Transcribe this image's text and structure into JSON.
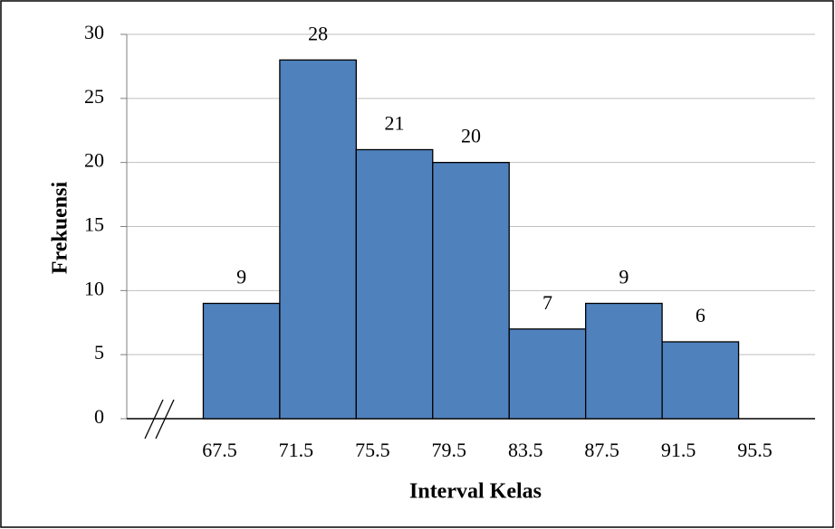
{
  "chart_data": {
    "type": "histogram",
    "xlabel": "Interval Kelas",
    "ylabel": "Frekuensi",
    "bins": [
      67.5,
      71.5,
      75.5,
      79.5,
      83.5,
      87.5,
      91.5,
      95.5
    ],
    "values": [
      9,
      28,
      21,
      20,
      7,
      9,
      6
    ],
    "color": "#4f81bd",
    "xlim": [
      63.5,
      99.5
    ],
    "ylim": [
      0,
      30
    ],
    "yticks": [
      0,
      5,
      10,
      15,
      20,
      25,
      30
    ],
    "grid": true
  }
}
